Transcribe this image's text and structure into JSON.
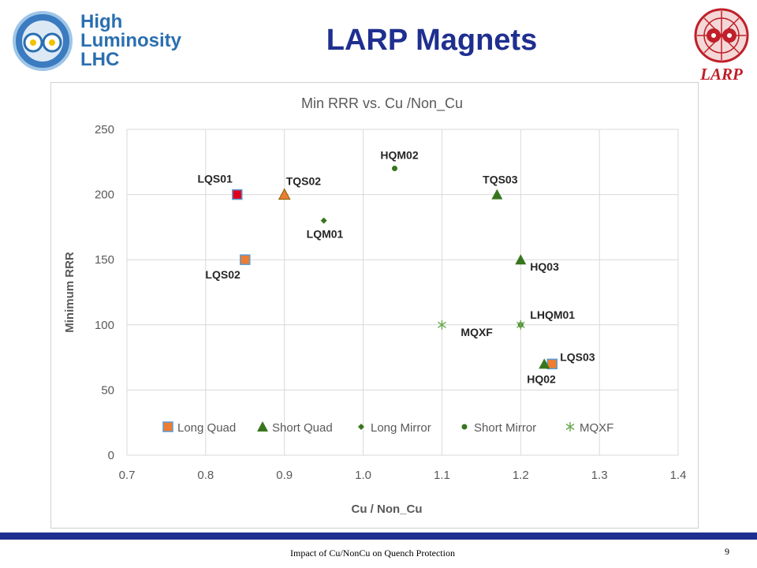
{
  "slide": {
    "title": "LARP Magnets",
    "footer": "Impact of Cu/NonCu on Quench Protection",
    "page_number": "9"
  },
  "logos": {
    "hl_lhc": {
      "line1": "High",
      "line2": "Luminosity",
      "line3": "LHC",
      "icon": "hl-lhc-logo-icon"
    },
    "larp": {
      "text": "LARP",
      "icon": "larp-logo-icon"
    }
  },
  "colors": {
    "title": "#1f2f8f",
    "long_quad": "#ed7d31",
    "long_quad_border": "#5b9bd5",
    "short_quad": "#38761d",
    "long_mirror": "#38761d",
    "short_mirror": "#38761d",
    "mqxf": "#6aa84f",
    "highlight_red": "#e0001b"
  },
  "chart_data": {
    "type": "scatter",
    "title": "Min RRR vs. Cu /Non_Cu",
    "xlabel": "Cu / Non_Cu",
    "ylabel": "Minimum RRR",
    "xlim": [
      0.7,
      1.4
    ],
    "ylim": [
      0,
      250
    ],
    "xticks": [
      "0.7",
      "0.8",
      "0.9",
      "1.0",
      "1.1",
      "1.2",
      "1.3",
      "1.4"
    ],
    "yticks": [
      "0",
      "50",
      "100",
      "150",
      "200",
      "250"
    ],
    "grid": true,
    "legend_position": "bottom inside",
    "series": [
      {
        "name": "Long Quad",
        "marker": "square",
        "points": [
          {
            "x": 0.84,
            "y": 200,
            "label": "LQS01",
            "highlight": true
          },
          {
            "x": 0.85,
            "y": 150,
            "label": "LQS02"
          },
          {
            "x": 1.24,
            "y": 70,
            "label": "LQS03"
          }
        ]
      },
      {
        "name": "Short Quad",
        "marker": "triangle",
        "points": [
          {
            "x": 0.9,
            "y": 200,
            "label": "TQS02",
            "highlight": true
          },
          {
            "x": 1.17,
            "y": 200,
            "label": "TQS03"
          },
          {
            "x": 1.2,
            "y": 150,
            "label": "HQ03"
          },
          {
            "x": 1.23,
            "y": 70,
            "label": "HQ02"
          }
        ]
      },
      {
        "name": "Long Mirror",
        "marker": "diamond",
        "points": [
          {
            "x": 0.95,
            "y": 180,
            "label": "LQM01"
          }
        ]
      },
      {
        "name": "Short Mirror",
        "marker": "circle",
        "points": [
          {
            "x": 1.04,
            "y": 220,
            "label": "HQM02"
          },
          {
            "x": 1.2,
            "y": 100,
            "label": "LHQM01"
          }
        ]
      },
      {
        "name": "MQXF",
        "marker": "asterisk",
        "points": [
          {
            "x": 1.1,
            "y": 100,
            "label": "MQXF"
          },
          {
            "x": 1.2,
            "y": 100,
            "label": ""
          }
        ]
      }
    ]
  }
}
